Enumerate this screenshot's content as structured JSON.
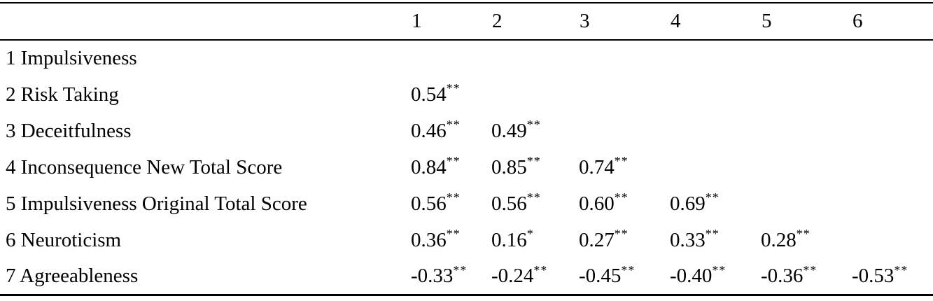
{
  "page": {
    "background_color": "#ffffff",
    "text_color": "#000000"
  },
  "table": {
    "kind": "correlation-matrix",
    "corner_label": "",
    "columns": [
      "1",
      "2",
      "3",
      "4",
      "5",
      "6"
    ],
    "rows": [
      {
        "label": "1 Impulsiveness",
        "cells": []
      },
      {
        "label": "2 Risk Taking",
        "cells": [
          {
            "value": "0.54",
            "sig": "**"
          }
        ]
      },
      {
        "label": "3 Deceitfulness",
        "cells": [
          {
            "value": "0.46",
            "sig": "**"
          },
          {
            "value": "0.49",
            "sig": "**"
          }
        ]
      },
      {
        "label": "4 Inconsequence New Total Score",
        "cells": [
          {
            "value": "0.84",
            "sig": "**"
          },
          {
            "value": "0.85",
            "sig": "**"
          },
          {
            "value": "0.74",
            "sig": "**"
          }
        ]
      },
      {
        "label": "5 Impulsiveness Original Total Score",
        "cells": [
          {
            "value": "0.56",
            "sig": "**"
          },
          {
            "value": "0.56",
            "sig": "**"
          },
          {
            "value": "0.60",
            "sig": "**"
          },
          {
            "value": "0.69",
            "sig": "**"
          }
        ]
      },
      {
        "label": "6 Neuroticism",
        "cells": [
          {
            "value": "0.36",
            "sig": "**"
          },
          {
            "value": "0.16",
            "sig": "*"
          },
          {
            "value": "0.27",
            "sig": "**"
          },
          {
            "value": "0.33",
            "sig": "**"
          },
          {
            "value": "0.28",
            "sig": "**"
          }
        ]
      },
      {
        "label": "7 Agreeableness",
        "cells": [
          {
            "value": "-0.33",
            "sig": "**"
          },
          {
            "value": "-0.24",
            "sig": "**"
          },
          {
            "value": "-0.45",
            "sig": "**"
          },
          {
            "value": "-0.40",
            "sig": "**"
          },
          {
            "value": "-0.36",
            "sig": "**"
          },
          {
            "value": "-0.53",
            "sig": "**"
          }
        ]
      }
    ]
  }
}
